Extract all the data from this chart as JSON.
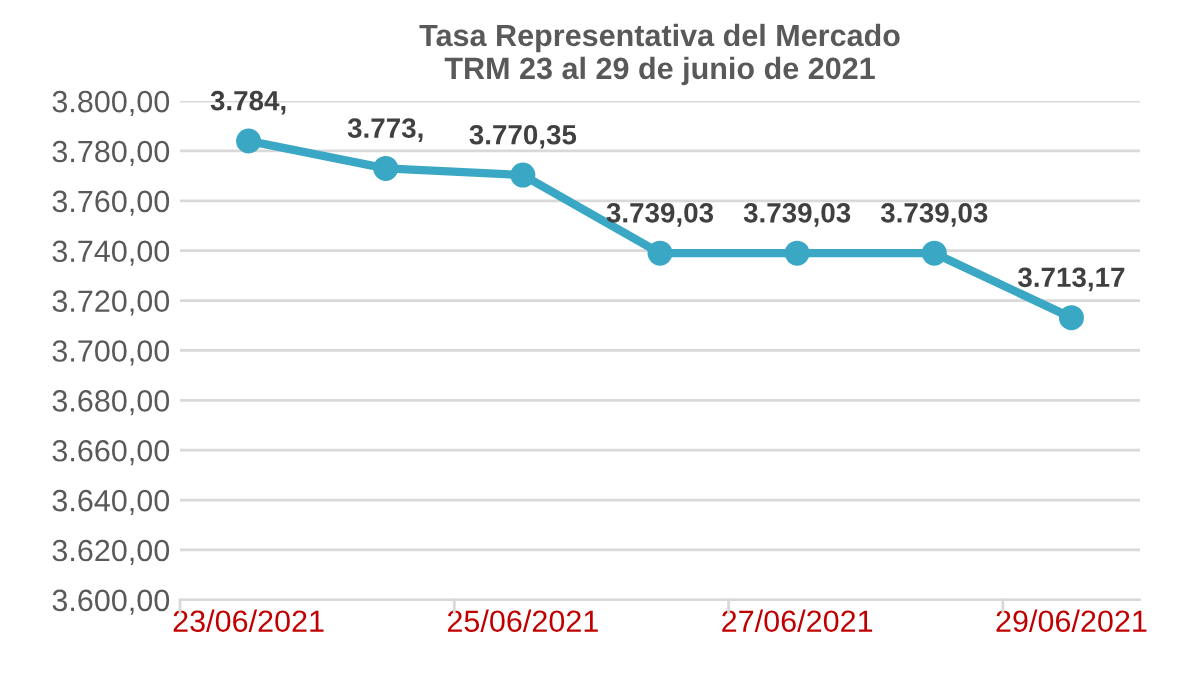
{
  "chart_data": {
    "type": "line",
    "title": "Tasa Representativa del Mercado\nTRM 23 al 29 de junio de 2021",
    "categories": [
      "23/06/2021",
      null,
      "25/06/2021",
      null,
      "27/06/2021",
      null,
      "29/06/2021"
    ],
    "series": [
      {
        "color": "#3aa8c5",
        "values": [
          3784,
          3773,
          3770.35,
          3739.03,
          3739.03,
          3739.03,
          3713.17
        ],
        "value_labels": [
          "3.784,",
          "3.773,",
          "3.770,35",
          "3.739,03",
          "3.739,03",
          "3.739,03",
          "3.713,17"
        ]
      }
    ],
    "ylim": [
      3600,
      3800
    ],
    "yticks": [
      {
        "value": 3600,
        "label": "3.600,00"
      },
      {
        "value": 3620,
        "label": "3.620,00"
      },
      {
        "value": 3640,
        "label": "3.640,00"
      },
      {
        "value": 3660,
        "label": "3.660,00"
      },
      {
        "value": 3680,
        "label": "3.680,00"
      },
      {
        "value": 3700,
        "label": "3.700,00"
      },
      {
        "value": 3720,
        "label": "3.720,00"
      },
      {
        "value": 3740,
        "label": "3.740,00"
      },
      {
        "value": 3760,
        "label": "3.760,00"
      },
      {
        "value": 3780,
        "label": "3.780,00"
      },
      {
        "value": 3800,
        "label": "3.800,00"
      }
    ],
    "grid": "y",
    "marker": "circle",
    "line_style": "solid",
    "legend": false
  }
}
